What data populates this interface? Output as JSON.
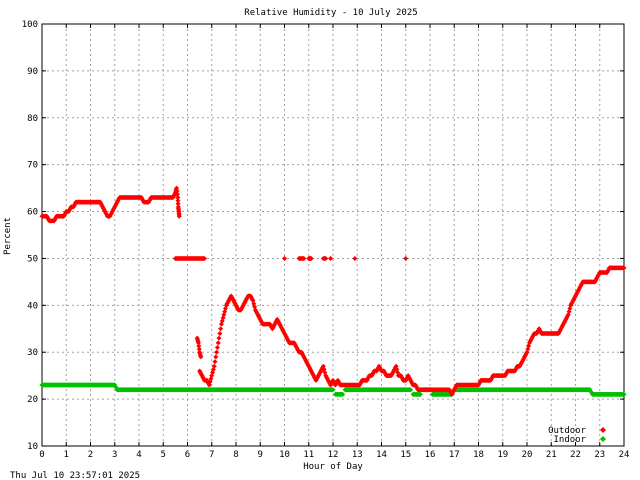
{
  "chart_data": {
    "type": "scatter",
    "title": "Relative Humidity - 10 July 2025",
    "xlabel": "Hour of Day",
    "ylabel": "Percent",
    "xlim": [
      0,
      24
    ],
    "ylim": [
      10,
      100
    ],
    "xticks": [
      "0",
      "1",
      "2",
      "3",
      "4",
      "5",
      "6",
      "7",
      "8",
      "9",
      "10",
      "11",
      "12",
      "13",
      "14",
      "15",
      "16",
      "17",
      "18",
      "19",
      "20",
      "21",
      "22",
      "23",
      "24"
    ],
    "yticks": [
      "10",
      "20",
      "30",
      "40",
      "50",
      "60",
      "70",
      "80",
      "90",
      "100"
    ],
    "grid": true,
    "legend_position": "bottom-right",
    "series": [
      {
        "name": "Outdoor",
        "color": "#ff0000",
        "points": [
          [
            0,
            59
          ],
          [
            0.1,
            59
          ],
          [
            0.2,
            59
          ],
          [
            0.3,
            58
          ],
          [
            0.4,
            58
          ],
          [
            0.5,
            58
          ],
          [
            0.6,
            59
          ],
          [
            0.7,
            59
          ],
          [
            0.8,
            59
          ],
          [
            0.9,
            59
          ],
          [
            1.0,
            60
          ],
          [
            1.1,
            60
          ],
          [
            1.2,
            61
          ],
          [
            1.3,
            61
          ],
          [
            1.4,
            62
          ],
          [
            1.5,
            62
          ],
          [
            1.6,
            62
          ],
          [
            1.7,
            62
          ],
          [
            1.8,
            62
          ],
          [
            1.9,
            62
          ],
          [
            2.0,
            62
          ],
          [
            2.1,
            62
          ],
          [
            2.2,
            62
          ],
          [
            2.3,
            62
          ],
          [
            2.4,
            62
          ],
          [
            2.5,
            61
          ],
          [
            2.6,
            60
          ],
          [
            2.7,
            59
          ],
          [
            2.8,
            59
          ],
          [
            2.9,
            60
          ],
          [
            3.0,
            61
          ],
          [
            3.1,
            62
          ],
          [
            3.2,
            63
          ],
          [
            3.3,
            63
          ],
          [
            3.4,
            63
          ],
          [
            3.5,
            63
          ],
          [
            3.6,
            63
          ],
          [
            3.7,
            63
          ],
          [
            3.8,
            63
          ],
          [
            3.9,
            63
          ],
          [
            4.0,
            63
          ],
          [
            4.1,
            63
          ],
          [
            4.2,
            62
          ],
          [
            4.3,
            62
          ],
          [
            4.4,
            62
          ],
          [
            4.5,
            63
          ],
          [
            4.6,
            63
          ],
          [
            4.7,
            63
          ],
          [
            4.8,
            63
          ],
          [
            4.9,
            63
          ],
          [
            5.0,
            63
          ],
          [
            5.1,
            63
          ],
          [
            5.2,
            63
          ],
          [
            5.3,
            63
          ],
          [
            5.4,
            63
          ],
          [
            5.5,
            64
          ],
          [
            5.55,
            65
          ],
          [
            5.6,
            63
          ],
          [
            5.62,
            61
          ],
          [
            5.64,
            60
          ],
          [
            5.66,
            59
          ],
          [
            5.5,
            50
          ],
          [
            5.6,
            50
          ],
          [
            5.7,
            50
          ],
          [
            5.8,
            50
          ],
          [
            5.9,
            50
          ],
          [
            6.0,
            50
          ],
          [
            6.1,
            50
          ],
          [
            6.2,
            50
          ],
          [
            6.3,
            50
          ],
          [
            6.4,
            50
          ],
          [
            6.5,
            50
          ],
          [
            6.6,
            50
          ],
          [
            6.7,
            50
          ],
          [
            6.4,
            33
          ],
          [
            6.45,
            32
          ],
          [
            6.5,
            30
          ],
          [
            6.55,
            29
          ],
          [
            6.5,
            26
          ],
          [
            6.6,
            25
          ],
          [
            6.7,
            24
          ],
          [
            6.8,
            24
          ],
          [
            6.9,
            23
          ],
          [
            7.0,
            25
          ],
          [
            7.1,
            27
          ],
          [
            7.2,
            30
          ],
          [
            7.3,
            33
          ],
          [
            7.4,
            36
          ],
          [
            7.5,
            38
          ],
          [
            7.6,
            40
          ],
          [
            7.7,
            41
          ],
          [
            7.8,
            42
          ],
          [
            7.9,
            41
          ],
          [
            8.0,
            40
          ],
          [
            8.1,
            39
          ],
          [
            8.2,
            39
          ],
          [
            8.3,
            40
          ],
          [
            8.4,
            41
          ],
          [
            8.5,
            42
          ],
          [
            8.6,
            42
          ],
          [
            8.7,
            41
          ],
          [
            8.8,
            39
          ],
          [
            8.9,
            38
          ],
          [
            9.0,
            37
          ],
          [
            9.1,
            36
          ],
          [
            9.2,
            36
          ],
          [
            9.3,
            36
          ],
          [
            9.4,
            36
          ],
          [
            9.5,
            35
          ],
          [
            9.6,
            36
          ],
          [
            9.7,
            37
          ],
          [
            9.8,
            36
          ],
          [
            9.9,
            35
          ],
          [
            10.0,
            34
          ],
          [
            10.1,
            33
          ],
          [
            10.2,
            32
          ],
          [
            10.3,
            32
          ],
          [
            10.4,
            32
          ],
          [
            10.5,
            31
          ],
          [
            10.6,
            30
          ],
          [
            10.7,
            30
          ],
          [
            10.8,
            29
          ],
          [
            10.9,
            28
          ],
          [
            11.0,
            27
          ],
          [
            11.1,
            26
          ],
          [
            11.2,
            25
          ],
          [
            11.3,
            24
          ],
          [
            11.4,
            25
          ],
          [
            11.5,
            26
          ],
          [
            11.6,
            27
          ],
          [
            11.7,
            25
          ],
          [
            11.8,
            24
          ],
          [
            11.9,
            23
          ],
          [
            12.0,
            24
          ],
          [
            12.1,
            23
          ],
          [
            12.2,
            24
          ],
          [
            12.3,
            23
          ],
          [
            12.4,
            23
          ],
          [
            12.5,
            23
          ],
          [
            12.6,
            23
          ],
          [
            12.7,
            23
          ],
          [
            12.8,
            23
          ],
          [
            12.9,
            23
          ],
          [
            13.0,
            23
          ],
          [
            13.1,
            23
          ],
          [
            13.2,
            24
          ],
          [
            13.3,
            24
          ],
          [
            13.4,
            24
          ],
          [
            13.5,
            25
          ],
          [
            13.6,
            25
          ],
          [
            13.7,
            26
          ],
          [
            13.8,
            26
          ],
          [
            13.9,
            27
          ],
          [
            14.0,
            26
          ],
          [
            14.1,
            26
          ],
          [
            14.2,
            25
          ],
          [
            14.3,
            25
          ],
          [
            14.4,
            25
          ],
          [
            14.5,
            26
          ],
          [
            14.6,
            27
          ],
          [
            14.7,
            25
          ],
          [
            14.8,
            25
          ],
          [
            14.9,
            24
          ],
          [
            15.0,
            24
          ],
          [
            15.1,
            25
          ],
          [
            15.2,
            24
          ],
          [
            15.3,
            23
          ],
          [
            15.4,
            23
          ],
          [
            15.5,
            22
          ],
          [
            15.6,
            22
          ],
          [
            15.7,
            22
          ],
          [
            15.8,
            22
          ],
          [
            15.9,
            22
          ],
          [
            16.0,
            22
          ],
          [
            16.1,
            22
          ],
          [
            16.2,
            22
          ],
          [
            16.3,
            22
          ],
          [
            16.4,
            22
          ],
          [
            16.5,
            22
          ],
          [
            16.6,
            22
          ],
          [
            16.7,
            22
          ],
          [
            16.8,
            22
          ],
          [
            16.9,
            21
          ],
          [
            17.0,
            22
          ],
          [
            17.1,
            23
          ],
          [
            17.2,
            23
          ],
          [
            17.3,
            23
          ],
          [
            17.4,
            23
          ],
          [
            17.5,
            23
          ],
          [
            17.6,
            23
          ],
          [
            17.7,
            23
          ],
          [
            17.8,
            23
          ],
          [
            17.9,
            23
          ],
          [
            18.0,
            23
          ],
          [
            18.1,
            24
          ],
          [
            18.2,
            24
          ],
          [
            18.3,
            24
          ],
          [
            18.4,
            24
          ],
          [
            18.5,
            24
          ],
          [
            18.6,
            25
          ],
          [
            18.7,
            25
          ],
          [
            18.8,
            25
          ],
          [
            18.9,
            25
          ],
          [
            19.0,
            25
          ],
          [
            19.1,
            25
          ],
          [
            19.2,
            26
          ],
          [
            19.3,
            26
          ],
          [
            19.4,
            26
          ],
          [
            19.5,
            26
          ],
          [
            19.6,
            27
          ],
          [
            19.7,
            27
          ],
          [
            19.8,
            28
          ],
          [
            19.9,
            29
          ],
          [
            20.0,
            30
          ],
          [
            20.1,
            32
          ],
          [
            20.2,
            33
          ],
          [
            20.3,
            34
          ],
          [
            20.4,
            34
          ],
          [
            20.5,
            35
          ],
          [
            20.6,
            34
          ],
          [
            20.7,
            34
          ],
          [
            20.8,
            34
          ],
          [
            20.9,
            34
          ],
          [
            21.0,
            34
          ],
          [
            21.1,
            34
          ],
          [
            21.2,
            34
          ],
          [
            21.3,
            34
          ],
          [
            21.4,
            35
          ],
          [
            21.5,
            36
          ],
          [
            21.6,
            37
          ],
          [
            21.7,
            38
          ],
          [
            21.8,
            40
          ],
          [
            21.9,
            41
          ],
          [
            22.0,
            42
          ],
          [
            22.1,
            43
          ],
          [
            22.2,
            44
          ],
          [
            22.3,
            45
          ],
          [
            22.4,
            45
          ],
          [
            22.5,
            45
          ],
          [
            22.6,
            45
          ],
          [
            22.7,
            45
          ],
          [
            22.8,
            45
          ],
          [
            22.9,
            46
          ],
          [
            23.0,
            47
          ],
          [
            23.1,
            47
          ],
          [
            23.2,
            47
          ],
          [
            23.3,
            47
          ],
          [
            23.4,
            48
          ],
          [
            23.5,
            48
          ],
          [
            23.6,
            48
          ],
          [
            23.7,
            48
          ],
          [
            23.8,
            48
          ],
          [
            23.9,
            48
          ],
          [
            24.0,
            48
          ],
          [
            10.0,
            50
          ],
          [
            10.6,
            50
          ],
          [
            10.7,
            50
          ],
          [
            10.8,
            50
          ],
          [
            11.0,
            50
          ],
          [
            11.05,
            50
          ],
          [
            11.1,
            50
          ],
          [
            11.6,
            50
          ],
          [
            11.7,
            50
          ],
          [
            11.9,
            50
          ],
          [
            12.9,
            50
          ],
          [
            15.0,
            50
          ]
        ]
      },
      {
        "name": "Indoor",
        "color": "#00c000",
        "segments": [
          {
            "from": 0,
            "to": 3.0,
            "value": 23
          },
          {
            "from": 3.1,
            "to": 12.0,
            "value": 22
          },
          {
            "from": 12.1,
            "to": 12.4,
            "value": 21
          },
          {
            "from": 12.5,
            "to": 15.2,
            "value": 22
          },
          {
            "from": 15.3,
            "to": 15.6,
            "value": 21
          },
          {
            "from": 15.7,
            "to": 16.0,
            "value": 22
          },
          {
            "from": 16.1,
            "to": 16.9,
            "value": 21
          },
          {
            "from": 17.0,
            "to": 22.6,
            "value": 22
          },
          {
            "from": 22.7,
            "to": 24.0,
            "value": 21
          }
        ],
        "points": [
          [
            3.05,
            22.5
          ],
          [
            22.65,
            21.5
          ]
        ]
      }
    ],
    "timestamp": "Thu Jul 10 23:57:01 2025"
  }
}
